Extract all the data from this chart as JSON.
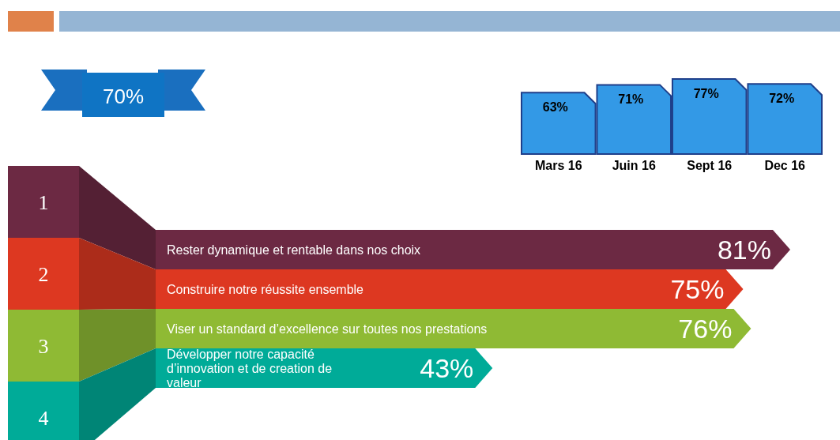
{
  "chart_data": [
    {
      "type": "bar",
      "categories": [
        "Mars 16",
        "Juin 16",
        "Sept 16",
        "Dec 16"
      ],
      "values": [
        63,
        71,
        77,
        72
      ],
      "color": "#3399e6",
      "value_labels": [
        "63%",
        "71%",
        "77%",
        "72%"
      ],
      "annotations": [
        "70%"
      ]
    },
    {
      "type": "bar",
      "orientation": "horizontal",
      "categories": [
        "Rester dynamique et rentable dans nos choix",
        "Construire notre réussite ensemble",
        "Viser un standard d’excellence sur toutes nos prestations",
        "Développer notre capacité d’innovation et de creation de valeur"
      ],
      "values": [
        81,
        75,
        76,
        43
      ],
      "colors": [
        "#6c2943",
        "#dd3821",
        "#8fba34",
        "#00ab98"
      ],
      "value_labels": [
        "81%",
        "75%",
        "76%",
        "43%"
      ],
      "annotations": [
        "1",
        "2",
        "3",
        "4"
      ]
    }
  ]
}
